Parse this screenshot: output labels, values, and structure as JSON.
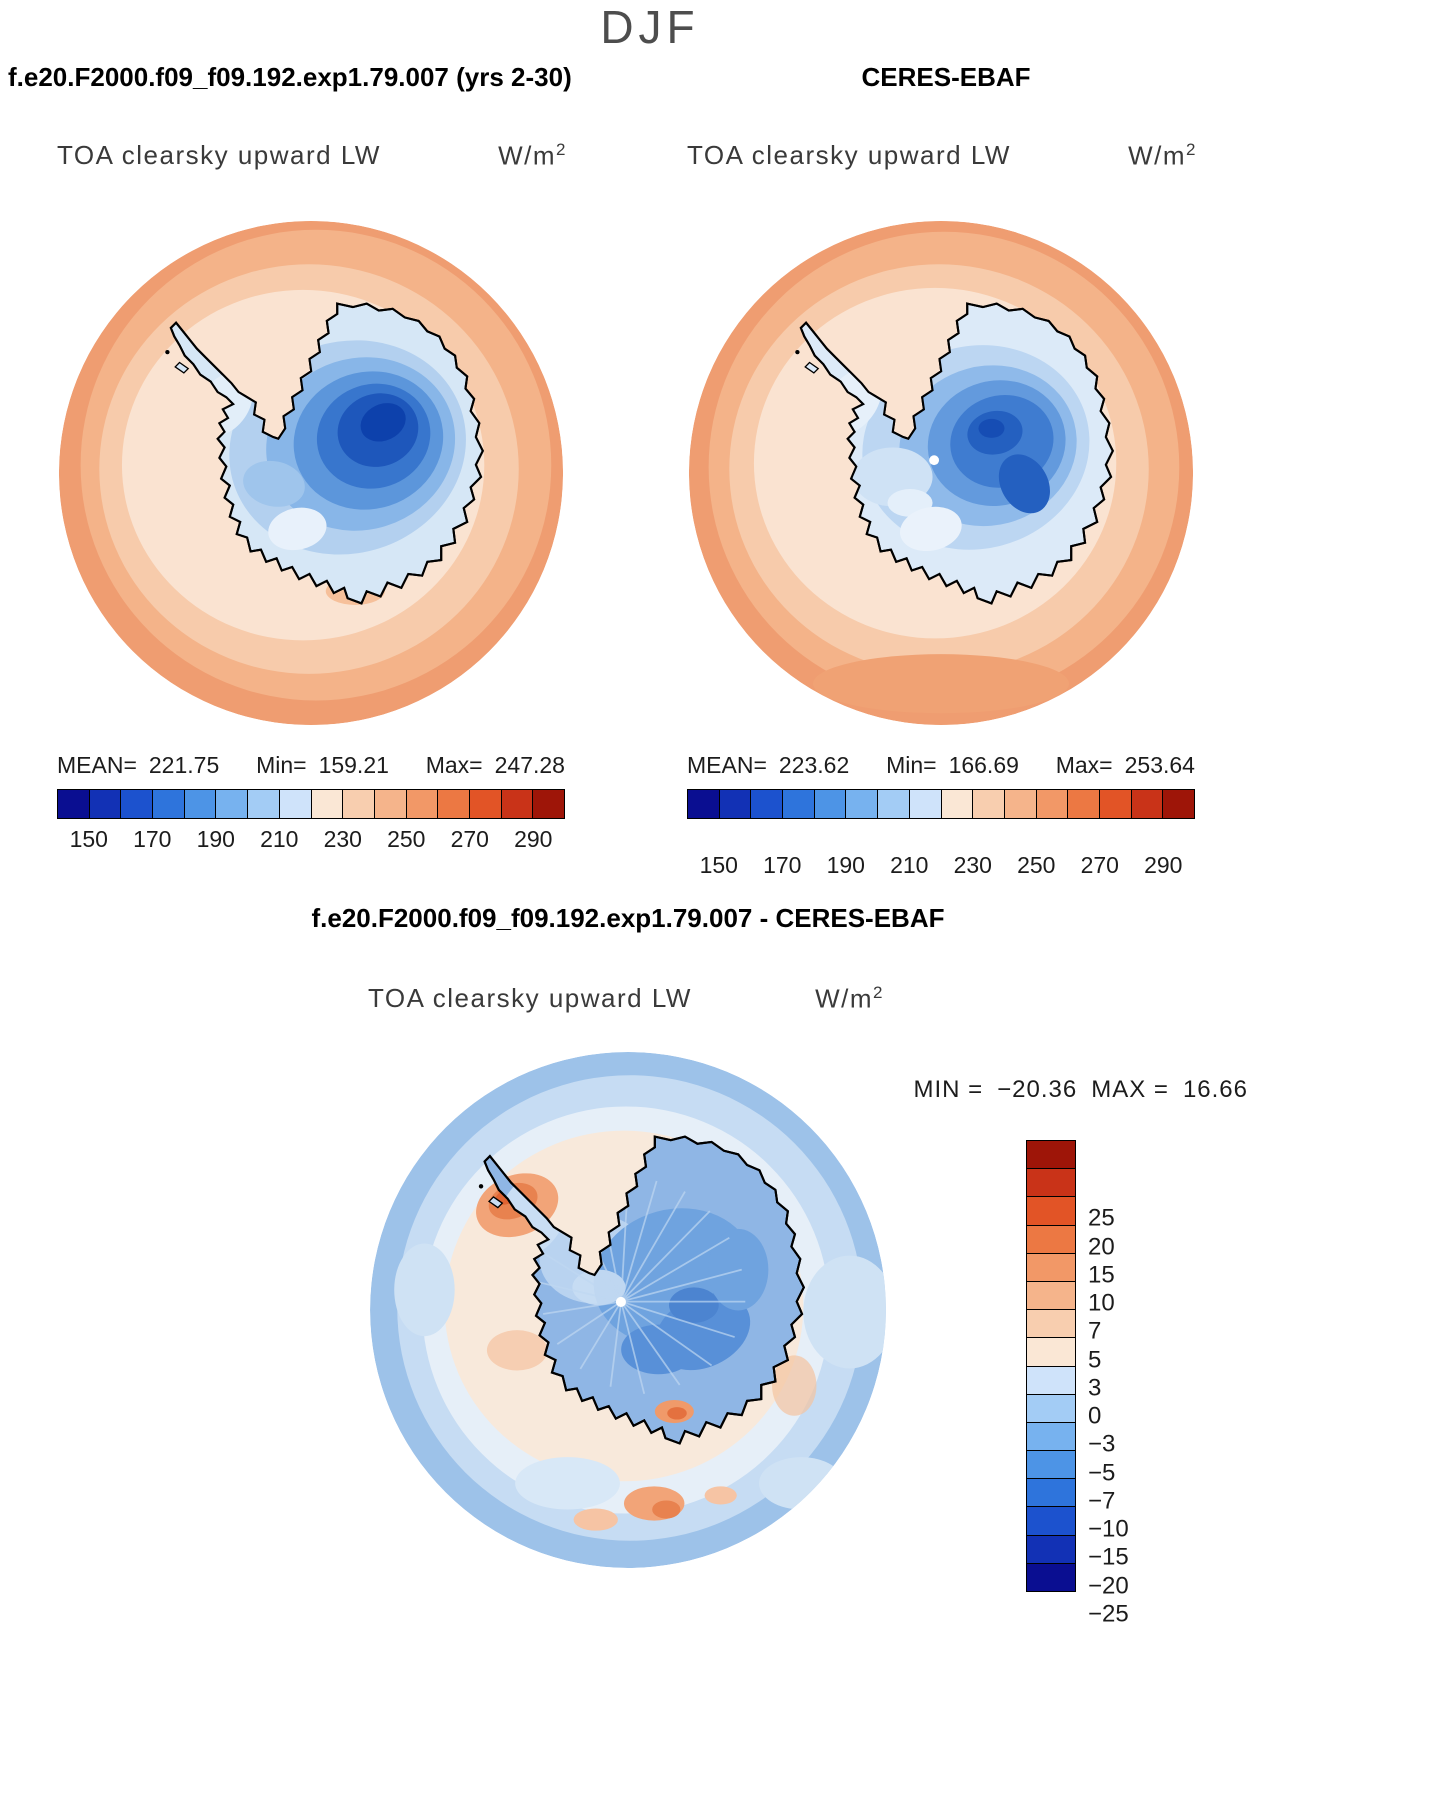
{
  "page_title": "DJF",
  "panels": {
    "model": {
      "title": "f.e20.F2000.f09_f09.192.exp1.79.007 (yrs 2-30)",
      "field_label": "TOA clearsky upward LW",
      "units": "W/m",
      "units_sup": "2",
      "stats": {
        "mean_label": "MEAN=",
        "mean": "221.75",
        "min_label": "Min=",
        "min": "159.21",
        "max_label": "Max=",
        "max": "247.28"
      }
    },
    "obs": {
      "title": "CERES-EBAF",
      "field_label": "TOA clearsky upward LW",
      "units": "W/m",
      "units_sup": "2",
      "stats": {
        "mean_label": "MEAN=",
        "mean": "223.62",
        "min_label": "Min=",
        "min": "166.69",
        "max_label": "Max=",
        "max": "253.64"
      }
    },
    "diff": {
      "title": "f.e20.F2000.f09_f09.192.exp1.79.007 - CERES-EBAF",
      "field_label": "TOA clearsky upward LW",
      "units": "W/m",
      "units_sup": "2",
      "min_label": "MIN =",
      "min_value": "−20.36",
      "max_label": "MAX =",
      "max_value": "16.66"
    }
  },
  "colorbar_main": {
    "ticks": [
      "150",
      "170",
      "190",
      "210",
      "230",
      "250",
      "270",
      "290"
    ],
    "colors": [
      "#0A0E91",
      "#1231B5",
      "#1C52CE",
      "#2E74DC",
      "#4D94E6",
      "#77B2EF",
      "#A3CCF5",
      "#CFE3FA",
      "#FAE7D5",
      "#F8CEAF",
      "#F5B48B",
      "#F29867",
      "#EC7843",
      "#E25426",
      "#C93318",
      "#9E1508"
    ]
  },
  "colorbar_diff": {
    "ticks": [
      "25",
      "20",
      "15",
      "10",
      "7",
      "5",
      "3",
      "0",
      "−3",
      "−5",
      "−7",
      "−10",
      "−15",
      "−20",
      "−25"
    ],
    "colors": [
      "#9E1508",
      "#C93318",
      "#E25426",
      "#EC7843",
      "#F29867",
      "#F5B48B",
      "#F8CEAF",
      "#FAE7D5",
      "#CFE3FA",
      "#A3CCF5",
      "#77B2EF",
      "#4D94E6",
      "#2E74DC",
      "#1C52CE",
      "#1231B5",
      "#0A0E91"
    ]
  },
  "chart_data": [
    {
      "type": "heatmap",
      "subtype": "south-polar-stereographic-map",
      "season": "DJF",
      "title": "f.e20.F2000.f09_f09.192.exp1.79.007 (yrs 2-30)",
      "variable": "TOA clearsky upward LW",
      "units": "W/m2",
      "stats": {
        "mean": 221.75,
        "min": 159.21,
        "max": 247.28
      },
      "colorbar_ticks": [
        150,
        170,
        190,
        210,
        230,
        250,
        270,
        290
      ],
      "n_color_bins": 16,
      "pattern": "Low values 150-200 W/m2 (blues) over Antarctic interior ice sheet, ~200-230 (pale blues/cream) near coast, high values 230-260 (oranges) over surrounding Southern Ocean"
    },
    {
      "type": "heatmap",
      "subtype": "south-polar-stereographic-map",
      "season": "DJF",
      "title": "CERES-EBAF",
      "variable": "TOA clearsky upward LW",
      "units": "W/m2",
      "stats": {
        "mean": 223.62,
        "min": 166.69,
        "max": 253.64
      },
      "colorbar_ticks": [
        150,
        170,
        190,
        210,
        230,
        250,
        270,
        290
      ],
      "n_color_bins": 16,
      "pattern": "Same spatial structure as model: blue minimum over East Antarctic plateau (with white dot at pole), cream coastal band, orange Southern Ocean ring"
    },
    {
      "type": "heatmap",
      "subtype": "south-polar-stereographic-map",
      "season": "DJF",
      "title": "f.e20.F2000.f09_f09.192.exp1.79.007 - CERES-EBAF",
      "variable": "TOA clearsky upward LW",
      "units": "W/m2",
      "stats": {
        "min": -20.36,
        "max": 16.66
      },
      "colorbar_levels": [
        25,
        20,
        15,
        10,
        7,
        5,
        3,
        0,
        -3,
        -5,
        -7,
        -10,
        -15,
        -20,
        -25
      ],
      "n_color_bins": 16,
      "pattern": "Negative differences (blues, ~-3 to -10) over Antarctic continent with radial streaks from pole and over outer Southern Ocean ring; near-zero/cream mid-ocean band; positive patches (oranges, +3 to +10) near Antarctic Peninsula and a few coastal spots"
    }
  ]
}
